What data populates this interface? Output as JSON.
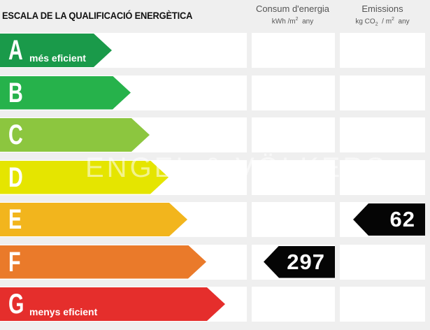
{
  "header": {
    "title": "ESCALA DE LA QUALIFICACIÓ ENERGÈTICA",
    "consum_title": "Consum d'energia",
    "consum_unit_a": "kWh /m",
    "consum_unit_sup": "2",
    "consum_unit_b": "any",
    "emis_title": "Emissions",
    "emis_unit_a": "kg CO",
    "emis_unit_sub": "2",
    "emis_unit_b": "/ m",
    "emis_unit_sup": "2",
    "emis_unit_c": "any"
  },
  "scale": [
    {
      "letter": "A",
      "note": "més eficient",
      "color": "#1a9a4a"
    },
    {
      "letter": "B",
      "note": "",
      "color": "#26b24b"
    },
    {
      "letter": "C",
      "note": "",
      "color": "#8cc63f"
    },
    {
      "letter": "D",
      "note": "",
      "color": "#e5e500"
    },
    {
      "letter": "E",
      "note": "",
      "color": "#f2b51d"
    },
    {
      "letter": "F",
      "note": "",
      "color": "#ea7a2a"
    },
    {
      "letter": "G",
      "note": "menys eficient",
      "color": "#e52e2c"
    }
  ],
  "rating": {
    "consum": {
      "class": "F",
      "value": "297"
    },
    "emissions": {
      "class": "E",
      "value": "62"
    }
  }
}
